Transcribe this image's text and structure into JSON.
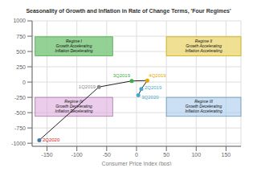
{
  "chart_data": {
    "type": "scatter",
    "title": "Seasonality of Growth and Inflation in Rate of Change Terms, 'Four Regimes'",
    "xlabel": "Consumer Price Index (bps)",
    "xlim": [
      -175,
      175
    ],
    "ylim": [
      -1050,
      1000
    ],
    "xticks": [
      -150,
      -100,
      -50,
      0,
      50,
      100,
      150
    ],
    "yticks": [
      -1000,
      -750,
      -500,
      -250,
      0,
      250,
      500,
      750,
      1000
    ],
    "grid": true,
    "color": "#222222",
    "line_style": "solid",
    "points": [
      {
        "label": "2Q2020",
        "x": -163,
        "y": -950,
        "color": "#4477aa",
        "label_color": "#cc2222"
      },
      {
        "label": "1Q2019",
        "x": -63,
        "y": -80,
        "color": "#888888",
        "label_color": "#888888"
      },
      {
        "label": "3Q2019",
        "x": -8,
        "y": 18,
        "color": "#44aa44",
        "label_color": "#44aa44"
      },
      {
        "label": "4Q2019",
        "x": 18,
        "y": 25,
        "color": "#ddaa00",
        "label_color": "#ddaa00"
      },
      {
        "label": "2Q2019",
        "x": 8,
        "y": -115,
        "color": "#44aacc",
        "label_color": "#44aacc"
      },
      {
        "label": "3Q2020",
        "x": 3,
        "y": -215,
        "color": "#44aacc",
        "label_color": "#44aacc"
      }
    ],
    "regimes": [
      {
        "label": "Regime I\nGrowth Accelerating\nInflation Decelerating",
        "x": [
          -170,
          -40
        ],
        "y": [
          430,
          740
        ],
        "color": "#88cc88",
        "edge_color": "#44aa44"
      },
      {
        "label": "Regime II\nGrowth Accelerating\nInflation Accelerating",
        "x": [
          50,
          175
        ],
        "y": [
          430,
          740
        ],
        "color": "#eedd88",
        "edge_color": "#ccaa00"
      },
      {
        "label": "Regime IV\nGrowth Decelerating\nInflation Decelerating",
        "x": [
          -170,
          -40
        ],
        "y": [
          -560,
          -250
        ],
        "color": "#ddaaddaa",
        "edge_color": "#aa77aa"
      },
      {
        "label": "Regime III\nGrowth Decelerating\nInflation Accelerating",
        "x": [
          50,
          175
        ],
        "y": [
          -560,
          -250
        ],
        "color": "#aacceeaa",
        "edge_color": "#6699bb"
      }
    ]
  }
}
